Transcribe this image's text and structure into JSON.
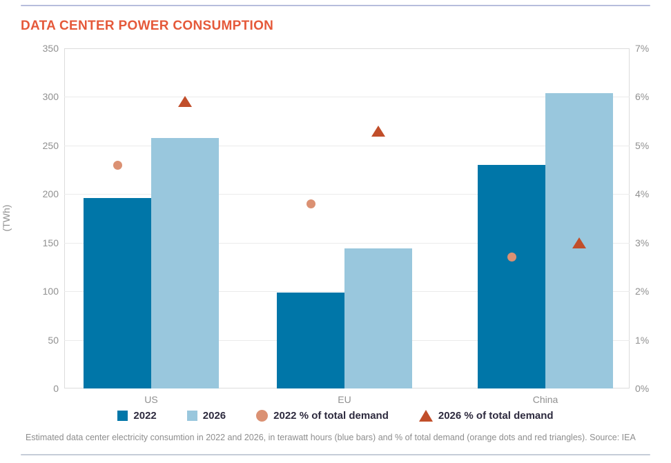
{
  "page": {
    "top_rule_color": "#b6bddc",
    "bottom_rule_color": "#c5ccd8"
  },
  "title": "DATA CENTER POWER CONSUMPTION",
  "title_color": "#e5593a",
  "chart_data": {
    "type": "bar",
    "title": "DATA CENTER POWER CONSUMPTION",
    "categories": [
      "US",
      "EU",
      "China"
    ],
    "series": [
      {
        "name": "2022",
        "kind": "bar",
        "axis": "left",
        "unit": "TWh",
        "color": "#0076a8",
        "values": [
          196,
          99,
          230
        ]
      },
      {
        "name": "2026",
        "kind": "bar",
        "axis": "left",
        "unit": "TWh",
        "color": "#99c7dd",
        "values": [
          258,
          144,
          304
        ]
      },
      {
        "name": "2022 % of total demand",
        "kind": "dot",
        "axis": "right",
        "unit": "%",
        "color": "#db9173",
        "values": [
          4.6,
          3.8,
          2.7
        ]
      },
      {
        "name": "2026 % of total demand",
        "kind": "triangle",
        "axis": "right",
        "unit": "%",
        "color": "#c14e2a",
        "values": [
          5.9,
          5.3,
          3.0
        ]
      }
    ],
    "left_axis": {
      "label": "(TWh)",
      "min": 0,
      "max": 350,
      "tick_step": 50,
      "ticks_top_to_bottom": [
        "350",
        "300",
        "250",
        "200",
        "150",
        "100",
        "50",
        "0"
      ]
    },
    "right_axis": {
      "min": 0,
      "max": 7,
      "tick_step": 1,
      "ticks_top_to_bottom": [
        "7%",
        "6%",
        "5%",
        "4%",
        "3%",
        "2%",
        "1%",
        "0%"
      ]
    },
    "grid": true,
    "legend_position": "bottom"
  },
  "legend": {
    "items": [
      {
        "label": "2022",
        "marker": "square",
        "color": "#0076a8"
      },
      {
        "label": "2026",
        "marker": "square",
        "color": "#99c7dd"
      },
      {
        "label": "2022 % of total demand",
        "marker": "circle",
        "color": "#db9173"
      },
      {
        "label": "2026 % of total demand",
        "marker": "triangle",
        "color": "#c14e2a"
      }
    ]
  },
  "caption": "Estimated data center electricity consumtion in 2022 and 2026, in terawatt hours (blue bars) and % of total demand (orange dots and red triangles). Source: IEA"
}
